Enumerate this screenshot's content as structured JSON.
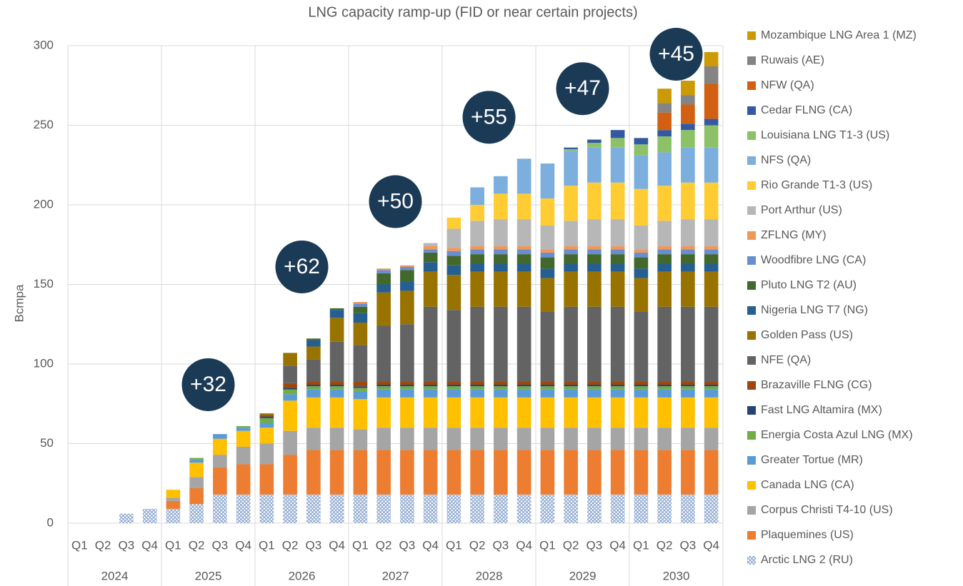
{
  "chart_data": {
    "type": "stacked_bar",
    "title": "LNG capacity ramp-up (FID or near certain projects)",
    "y_label": "Bcmpa",
    "categories": [
      "Q1",
      "Q2",
      "Q3",
      "Q4",
      "Q1",
      "Q2",
      "Q3",
      "Q4",
      "Q1",
      "Q2",
      "Q3",
      "Q4",
      "Q1",
      "Q2",
      "Q3",
      "Q4",
      "Q1",
      "Q2",
      "Q3",
      "Q4",
      "Q1",
      "Q2",
      "Q3",
      "Q4",
      "Q1",
      "Q2",
      "Q3",
      "Q4"
    ],
    "x_groups": [
      "2024",
      "2025",
      "2026",
      "2027",
      "2028",
      "2029",
      "2030"
    ],
    "ylim": [
      0,
      300
    ],
    "yticks": [
      0,
      50,
      100,
      150,
      200,
      250,
      300
    ],
    "grid": true,
    "legend": "right",
    "annotations": [
      {
        "text": "+32",
        "x": "2025"
      },
      {
        "text": "+62",
        "x": "2026"
      },
      {
        "text": "+50",
        "x": "2027"
      },
      {
        "text": "+55",
        "x": "2028"
      },
      {
        "text": "+47",
        "x": "2029"
      },
      {
        "text": "+45",
        "x": "2030"
      }
    ],
    "series": [
      {
        "name": "Arctic LNG 2 (RU)",
        "color": "#8fa9d0",
        "hatch": true,
        "values": [
          0,
          0,
          6,
          9,
          9,
          12,
          18,
          18,
          18,
          18,
          18,
          18,
          18,
          18,
          18,
          18,
          18,
          18,
          18,
          18,
          18,
          18,
          18,
          18,
          18,
          18,
          18,
          18
        ]
      },
      {
        "name": "Plaquemines (US)",
        "color": "#ed7d31",
        "values": [
          0,
          0,
          0,
          0,
          5,
          10,
          17,
          19,
          19,
          25,
          28,
          28,
          28,
          28,
          28,
          28,
          28,
          28,
          28,
          28,
          28,
          28,
          28,
          28,
          28,
          28,
          28,
          28
        ]
      },
      {
        "name": "Corpus Christi T4-10 (US)",
        "color": "#a5a5a5",
        "values": [
          0,
          0,
          0,
          0,
          2,
          7,
          8,
          11,
          13,
          15,
          14,
          14,
          13,
          14,
          14,
          14,
          14,
          14,
          14,
          14,
          14,
          14,
          14,
          14,
          14,
          14,
          14,
          14
        ]
      },
      {
        "name": "Canada LNG (CA)",
        "color": "#ffc000",
        "values": [
          0,
          0,
          0,
          0,
          5,
          9,
          10,
          10,
          10,
          19,
          19,
          19,
          19,
          19,
          19,
          19,
          19,
          19,
          19,
          19,
          19,
          19,
          19,
          19,
          19,
          19,
          19,
          19
        ]
      },
      {
        "name": "Greater Tortue (MR)",
        "color": "#5b9bd5",
        "values": [
          0,
          0,
          0,
          0,
          0,
          2,
          3,
          2,
          3,
          4,
          5,
          5,
          5,
          5,
          5,
          5,
          5,
          5,
          5,
          5,
          5,
          5,
          5,
          5,
          5,
          5,
          5,
          5
        ]
      },
      {
        "name": "Energia Costa Azul LNG (MX)",
        "color": "#70ad47",
        "values": [
          0,
          0,
          0,
          0,
          0,
          1,
          0,
          1,
          3,
          3,
          2,
          2,
          2,
          2,
          2,
          2,
          2,
          2,
          2,
          2,
          2,
          2,
          2,
          2,
          2,
          2,
          2,
          2
        ]
      },
      {
        "name": "Fast LNG Altamira (MX)",
        "color": "#264478",
        "values": [
          0,
          0,
          0,
          0,
          0,
          0,
          0,
          0,
          1,
          1,
          1,
          1,
          1,
          1,
          1,
          1,
          1,
          1,
          1,
          1,
          1,
          1,
          1,
          1,
          1,
          1,
          1,
          1
        ]
      },
      {
        "name": "Brazaville FLNG (CG)",
        "color": "#9e480e",
        "values": [
          0,
          0,
          0,
          0,
          0,
          0,
          0,
          0,
          1,
          3,
          2,
          2,
          3,
          2,
          2,
          2,
          2,
          2,
          2,
          2,
          2,
          2,
          2,
          2,
          2,
          2,
          2,
          2
        ]
      },
      {
        "name": "NFE (QA)",
        "color": "#636363",
        "values": [
          0,
          0,
          0,
          0,
          0,
          0,
          0,
          0,
          0,
          11,
          14,
          25,
          23,
          35,
          36,
          47,
          45,
          47,
          47,
          47,
          44,
          47,
          47,
          47,
          44,
          47,
          47,
          47
        ]
      },
      {
        "name": "Golden Pass (US)",
        "color": "#997300",
        "values": [
          0,
          0,
          0,
          0,
          0,
          0,
          0,
          0,
          1,
          8,
          8,
          15,
          14,
          21,
          21,
          22,
          22,
          22,
          22,
          22,
          21,
          22,
          22,
          22,
          21,
          22,
          22,
          22
        ]
      },
      {
        "name": "Nigeria LNG T7 (NG)",
        "color": "#255e91",
        "values": [
          0,
          0,
          0,
          0,
          0,
          0,
          0,
          0,
          0,
          0,
          4,
          5,
          6,
          5,
          6,
          6,
          6,
          5,
          5,
          5,
          6,
          5,
          5,
          5,
          6,
          5,
          5,
          5
        ]
      },
      {
        "name": "Pluto LNG T2 (AU)",
        "color": "#43682b",
        "values": [
          0,
          0,
          0,
          0,
          0,
          0,
          0,
          0,
          0,
          0,
          1,
          1,
          4,
          7,
          7,
          6,
          6,
          6,
          6,
          6,
          7,
          6,
          6,
          6,
          7,
          6,
          6,
          6
        ]
      },
      {
        "name": "Woodfibre LNG (CA)",
        "color": "#698ed0",
        "values": [
          0,
          0,
          0,
          0,
          0,
          0,
          0,
          0,
          0,
          0,
          0,
          0,
          2,
          2,
          2,
          2,
          3,
          3,
          3,
          3,
          3,
          3,
          3,
          3,
          3,
          3,
          3,
          3
        ]
      },
      {
        "name": "ZFLNG (MY)",
        "color": "#f1975a",
        "values": [
          0,
          0,
          0,
          0,
          0,
          0,
          0,
          0,
          0,
          0,
          0,
          0,
          1,
          1,
          1,
          2,
          2,
          2,
          2,
          2,
          2,
          2,
          2,
          2,
          2,
          2,
          2,
          2
        ]
      },
      {
        "name": "Port Arthur (US)",
        "color": "#b7b7b7",
        "values": [
          0,
          0,
          0,
          0,
          0,
          0,
          0,
          0,
          0,
          0,
          0,
          0,
          0,
          0,
          0,
          2,
          12,
          16,
          17,
          17,
          15,
          16,
          17,
          17,
          15,
          16,
          17,
          17
        ]
      },
      {
        "name": "Rio Grande T1-3 (US)",
        "color": "#ffcd33",
        "values": [
          0,
          0,
          0,
          0,
          0,
          0,
          0,
          0,
          0,
          0,
          0,
          0,
          0,
          0,
          0,
          0,
          7,
          10,
          16,
          16,
          17,
          22,
          23,
          23,
          23,
          22,
          23,
          23
        ]
      },
      {
        "name": "NFS (QA)",
        "color": "#7cafdd",
        "values": [
          0,
          0,
          0,
          0,
          0,
          0,
          0,
          0,
          0,
          0,
          0,
          0,
          0,
          0,
          0,
          0,
          0,
          11,
          11,
          22,
          22,
          22,
          22,
          22,
          21,
          21,
          22,
          22
        ]
      },
      {
        "name": "Louisiana LNG T1-3 (US)",
        "color": "#8cc168",
        "values": [
          0,
          0,
          0,
          0,
          0,
          0,
          0,
          0,
          0,
          0,
          0,
          0,
          0,
          0,
          0,
          0,
          0,
          0,
          0,
          0,
          0,
          1,
          3,
          6,
          7,
          10,
          11,
          14
        ]
      },
      {
        "name": "Cedar FLNG (CA)",
        "color": "#335aa1",
        "values": [
          0,
          0,
          0,
          0,
          0,
          0,
          0,
          0,
          0,
          0,
          0,
          0,
          0,
          0,
          0,
          0,
          0,
          0,
          0,
          0,
          0,
          1,
          2,
          5,
          4,
          4,
          4,
          4
        ]
      },
      {
        "name": "NFW (QA)",
        "color": "#d26012",
        "values": [
          0,
          0,
          0,
          0,
          0,
          0,
          0,
          0,
          0,
          0,
          0,
          0,
          0,
          0,
          0,
          0,
          0,
          0,
          0,
          0,
          0,
          0,
          0,
          0,
          0,
          11,
          12,
          22
        ]
      },
      {
        "name": "Ruwais (AE)",
        "color": "#848484",
        "values": [
          0,
          0,
          0,
          0,
          0,
          0,
          0,
          0,
          0,
          0,
          0,
          0,
          0,
          0,
          0,
          0,
          0,
          0,
          0,
          0,
          0,
          0,
          0,
          0,
          0,
          6,
          6,
          11
        ]
      },
      {
        "name": "Mozambique LNG Area 1 (MZ)",
        "color": "#cc9a06",
        "values": [
          0,
          0,
          0,
          0,
          0,
          0,
          0,
          0,
          0,
          0,
          0,
          0,
          0,
          0,
          0,
          0,
          0,
          0,
          0,
          0,
          0,
          0,
          0,
          0,
          0,
          9,
          9,
          9
        ]
      }
    ]
  }
}
